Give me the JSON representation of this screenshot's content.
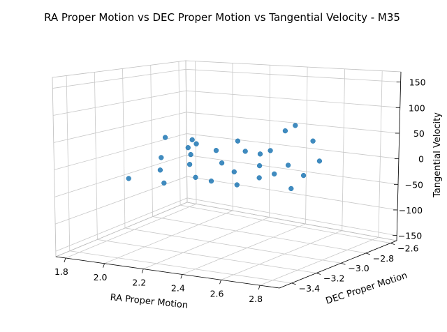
{
  "chart_data": {
    "type": "scatter",
    "title": "RA Proper Motion vs DEC Proper Motion vs Tangential Velocity - M35",
    "xlabel": "RA Proper Motion",
    "ylabel": "DEC Proper Motion",
    "zlabel": "Tangential Velocity",
    "x_ticks": [
      "1.8",
      "2.0",
      "2.2",
      "2.4",
      "2.6",
      "2.8"
    ],
    "y_ticks": [
      "−3.4",
      "−3.2",
      "−3.0",
      "−2.8",
      "−2.6"
    ],
    "z_ticks": [
      "−150",
      "−100",
      "−50",
      "0",
      "50",
      "100",
      "150"
    ],
    "xlim": [
      1.75,
      2.9
    ],
    "ylim": [
      -3.5,
      -2.55
    ],
    "zlim": [
      -160,
      170
    ],
    "grid": true,
    "marker_color": "#1f77b4",
    "points": [
      [
        2.3,
        -3.05,
        0
      ],
      [
        2.05,
        -3.15,
        5
      ],
      [
        2.55,
        -2.9,
        -3
      ],
      [
        2.2,
        -2.95,
        8
      ],
      [
        2.4,
        -3.1,
        -6
      ],
      [
        2.15,
        -3.3,
        2
      ],
      [
        2.6,
        -3.2,
        4
      ],
      [
        2.35,
        -2.75,
        -2
      ],
      [
        2.0,
        -2.85,
        6
      ],
      [
        2.7,
        -3.0,
        -4
      ],
      [
        2.45,
        -3.35,
        3
      ],
      [
        2.25,
        -2.8,
        -5
      ],
      [
        2.5,
        -3.05,
        7
      ],
      [
        2.1,
        -3.0,
        -1
      ],
      [
        2.65,
        -2.8,
        2
      ],
      [
        2.3,
        -3.25,
        -8
      ],
      [
        2.4,
        -2.9,
        9
      ],
      [
        2.2,
        -3.15,
        1
      ],
      [
        2.55,
        -3.3,
        -3
      ],
      [
        2.05,
        -2.95,
        4
      ],
      [
        2.35,
        -3.0,
        40
      ],
      [
        2.5,
        -2.85,
        55
      ],
      [
        2.2,
        -3.1,
        35
      ],
      [
        2.6,
        -2.95,
        -40
      ],
      [
        2.1,
        -3.2,
        -35
      ],
      [
        2.45,
        -2.7,
        48
      ],
      [
        2.0,
        -3.05,
        30
      ],
      [
        2.75,
        -3.0,
        65
      ],
      [
        2.3,
        -2.65,
        -60
      ],
      [
        1.95,
        -3.25,
        -30
      ]
    ]
  }
}
